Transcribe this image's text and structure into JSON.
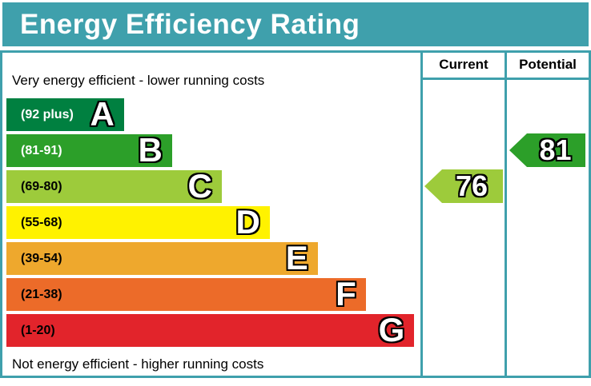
{
  "title": "Energy Efficiency Rating",
  "header": {
    "current": "Current",
    "potential": "Potential"
  },
  "notes": {
    "top": "Very energy efficient - lower running costs",
    "bottom": "Not energy efficient - higher running costs"
  },
  "colors": {
    "accent_teal": "#3fa0ac",
    "band_a": "#008040",
    "band_b": "#2c9f29",
    "band_c": "#9dcb3b",
    "band_d": "#fff200",
    "band_e": "#eea82d",
    "band_f": "#ec6b29",
    "band_g": "#e2242b"
  },
  "chart_data": {
    "type": "bar",
    "title": "Energy Efficiency Rating",
    "bands": [
      {
        "letter": "A",
        "range_label": "(92 plus)",
        "min": 92,
        "max": 100,
        "color": "#008040",
        "label_text_color": "#ffffff",
        "width_frac": 0.284
      },
      {
        "letter": "B",
        "range_label": "(81-91)",
        "min": 81,
        "max": 91,
        "color": "#2c9f29",
        "label_text_color": "#ffffff",
        "width_frac": 0.4
      },
      {
        "letter": "C",
        "range_label": "(69-80)",
        "min": 69,
        "max": 80,
        "color": "#9dcb3b",
        "label_text_color": "#000000",
        "width_frac": 0.52
      },
      {
        "letter": "D",
        "range_label": "(55-68)",
        "min": 55,
        "max": 68,
        "color": "#fff200",
        "label_text_color": "#000000",
        "width_frac": 0.636
      },
      {
        "letter": "E",
        "range_label": "(39-54)",
        "min": 39,
        "max": 54,
        "color": "#eea82d",
        "label_text_color": "#000000",
        "width_frac": 0.752
      },
      {
        "letter": "F",
        "range_label": "(21-38)",
        "min": 21,
        "max": 38,
        "color": "#ec6b29",
        "label_text_color": "#000000",
        "width_frac": 0.868
      },
      {
        "letter": "G",
        "range_label": "(1-20)",
        "min": 1,
        "max": 20,
        "color": "#e2242b",
        "label_text_color": "#000000",
        "width_frac": 0.985
      }
    ],
    "markers": {
      "current": {
        "value": 76,
        "band": "C",
        "color": "#9dcb3b",
        "row_index": 2
      },
      "potential": {
        "value": 81,
        "band": "B",
        "color": "#2c9f29",
        "row_index": 1
      }
    },
    "legend_position": "none",
    "grid": false
  }
}
